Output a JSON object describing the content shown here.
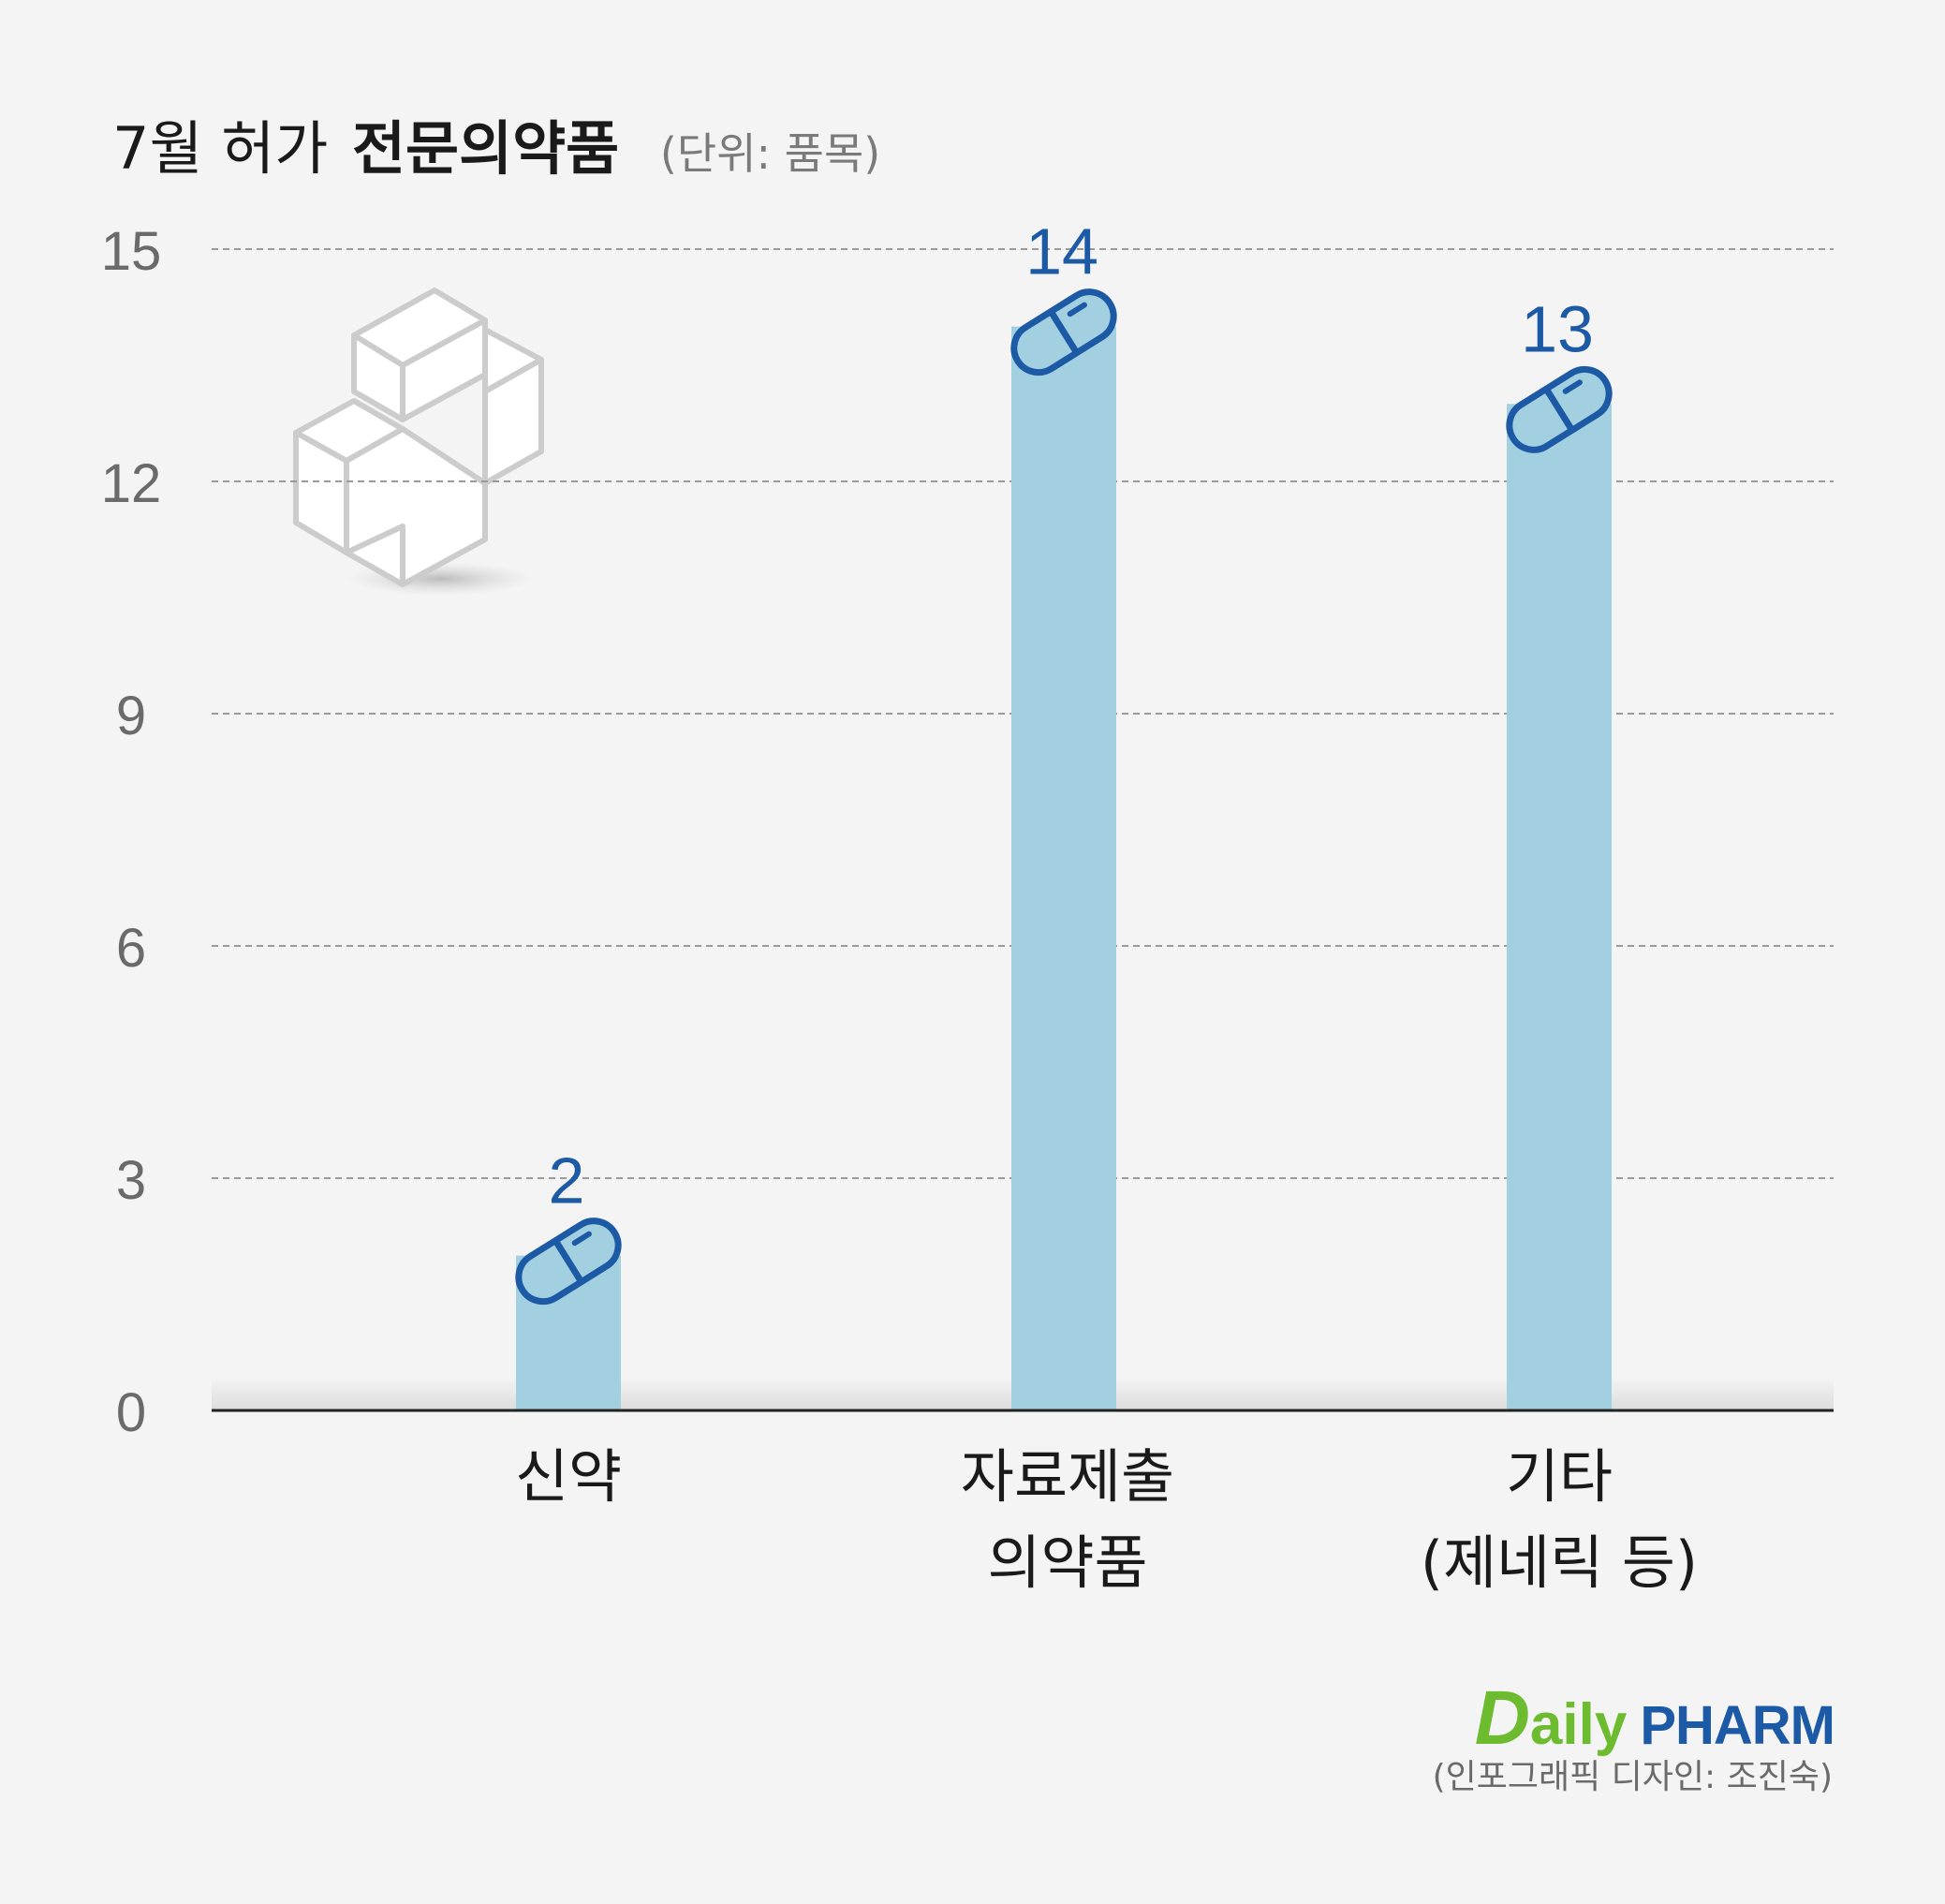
{
  "title": {
    "main": "7월 허가",
    "bold": "전문의약품",
    "unit": "(단위: 품목)"
  },
  "credit": "(인포그래픽 디자인: 조진숙)",
  "logo": {
    "d": "D",
    "aily": "aily",
    "pharm": "PHARM"
  },
  "colors": {
    "background": "#f4f4f4",
    "bar": "#a3d0e0",
    "value_label": "#1d5aa6",
    "axis": "#222222",
    "grid": "#9a9a9a",
    "tick_label": "#6a6a6a",
    "logo_green": "#6dbb2f",
    "logo_blue": "#1d5aa6"
  },
  "icons": [
    "medical-cross-3d-icon",
    "pill-capsule-icon"
  ],
  "chart_data": {
    "type": "bar",
    "categories": [
      [
        "신약"
      ],
      [
        "자료제출",
        "의약품"
      ],
      [
        "기타",
        "(제네릭 등)"
      ]
    ],
    "values": [
      2,
      14,
      13
    ],
    "value_labels": [
      "2",
      "14",
      "13"
    ],
    "ylim": [
      0,
      15
    ],
    "yticks": [
      0,
      3,
      6,
      9,
      12,
      15
    ],
    "grid": true,
    "xlabel": "",
    "ylabel": ""
  }
}
